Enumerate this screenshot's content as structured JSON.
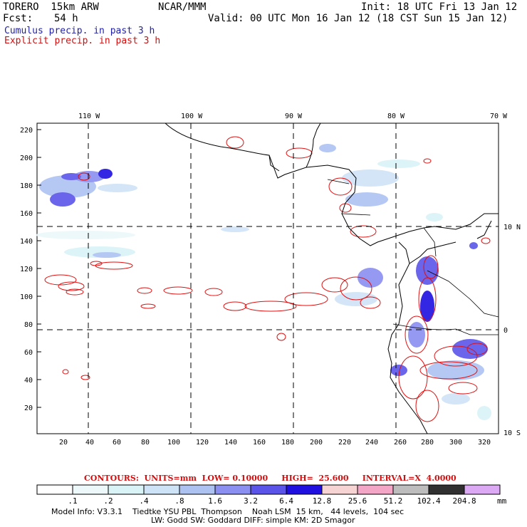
{
  "header": {
    "model_name": "TORERO  15km ARW",
    "org": "NCAR/MMM",
    "init": "Init: 18 UTC Fri 13 Jan 12",
    "fcst_label": "Fcst:",
    "fcst_value": "54 h",
    "valid": "Valid: 00 UTC Mon 16 Jan 12 (18 CST Sun 15 Jan 12)",
    "line_cumulus": "Cumulus precip. in past 3 h",
    "line_explicit": "Explicit precip. in past 3 h"
  },
  "map": {
    "lon_labels": [
      "110 W",
      "100 W",
      "90 W",
      "80 W",
      "70 W"
    ],
    "lat_labels": [
      "10 N",
      "0",
      "10 S"
    ],
    "y_ticks": [
      "220",
      "200",
      "180",
      "160",
      "140",
      "120",
      "100",
      "80",
      "60",
      "40",
      "20"
    ],
    "x_ticks": [
      "20",
      "40",
      "60",
      "80",
      "100",
      "120",
      "140",
      "160",
      "180",
      "200",
      "220",
      "240",
      "260",
      "280",
      "300",
      "320"
    ]
  },
  "contours": {
    "text": "CONTOURS:  UNITS=mm  LOW= 0.10000     HIGH=  25.600     INTERVAL=X  4.0000"
  },
  "colorbar": {
    "labels": [
      ".1",
      ".2",
      ".4",
      ".8",
      "1.6",
      "3.2",
      "6.4",
      "12.8",
      "25.6",
      "51.2",
      "102.4",
      "204.8"
    ],
    "unit": "mm",
    "colors": [
      "#ffffff",
      "#ecf8fa",
      "#d9f3f7",
      "#cfe3f6",
      "#aec2f2",
      "#8a8ff0",
      "#5a55e8",
      "#1f10e0",
      "#f7d4d4",
      "#f4a6c6",
      "#bdbdbd",
      "#303030",
      "#dcaaf5"
    ]
  },
  "model_info": {
    "line1": "Model Info: V3.3.1    Tiedtke YSU PBL  Thompson    Noah LSM  15 km,   44 levels,  104 sec",
    "line2": "LW: Godd SW: Goddard DIFF: simple KM: 2D Smagor"
  }
}
